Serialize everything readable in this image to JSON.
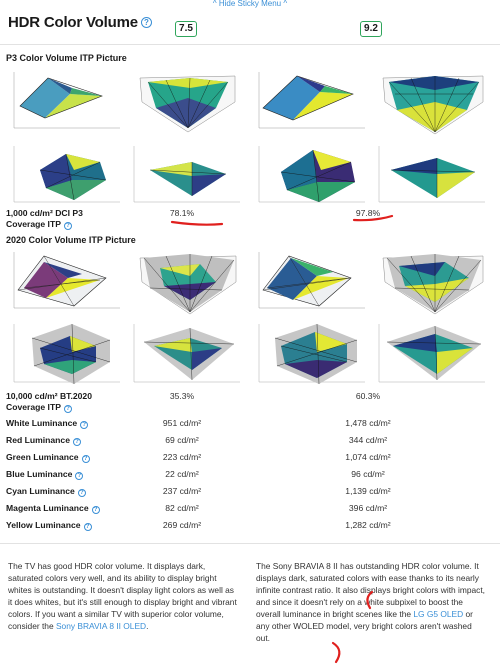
{
  "sticky_menu": {
    "label": "^ Hide Sticky Menu ^"
  },
  "header": {
    "title": "HDR Color Volume",
    "help_icon": "question-circle-icon",
    "score_left": "7.5",
    "score_right": "9.2",
    "score_color": "#2fa55b"
  },
  "sections": {
    "p3": {
      "title": "P3 Color Volume ITP Picture"
    },
    "bt2020": {
      "title": "2020 Color Volume ITP Picture"
    }
  },
  "coverage": {
    "p3": {
      "label_line1": "1,000 cd/m² DCI P3",
      "label_line2": "Coverage ITP",
      "left": "78.1%",
      "right": "97.8%"
    },
    "bt2020": {
      "label_line1": "10,000 cd/m² BT.2020",
      "label_line2": "Coverage ITP",
      "left": "35.3%",
      "right": "60.3%"
    }
  },
  "luminance_rows": [
    {
      "label": "White Luminance",
      "left": "951 cd/m²",
      "right": "1,478 cd/m²"
    },
    {
      "label": "Red Luminance",
      "left": "69 cd/m²",
      "right": "344 cd/m²"
    },
    {
      "label": "Green Luminance",
      "left": "223 cd/m²",
      "right": "1,074 cd/m²"
    },
    {
      "label": "Blue Luminance",
      "left": "22 cd/m²",
      "right": "96 cd/m²"
    },
    {
      "label": "Cyan Luminance",
      "left": "237 cd/m²",
      "right": "1,139 cd/m²"
    },
    {
      "label": "Magenta Luminance",
      "left": "82 cd/m²",
      "right": "396 cd/m²"
    },
    {
      "label": "Yellow Luminance",
      "left": "269 cd/m²",
      "right": "1,282 cd/m²"
    }
  ],
  "descriptions": {
    "left": {
      "text": "The TV has good HDR color volume. It displays dark, saturated colors very well, and its ability to display bright whites is outstanding. It doesn't display light colors as well as it does whites, but it's still enough to display bright and vibrant colors. If you want a similar TV with superior color volume, consider the ",
      "link": "Sony BRAVIA 8 II OLED",
      "end": "."
    },
    "right": {
      "text": "The Sony BRAVIA 8 II has outstanding HDR color volume. It displays dark, saturated colors with ease thanks to its nearly infinite contrast ratio. It also displays bright colors with impact, and since it doesn't rely on a white subpixel to boost the overall luminance in bright scenes like the ",
      "link": "LG G5 OLED",
      "end": " or any other WOLED model, very bright colors aren't washed out."
    }
  },
  "annotation_color": "#e0201e"
}
